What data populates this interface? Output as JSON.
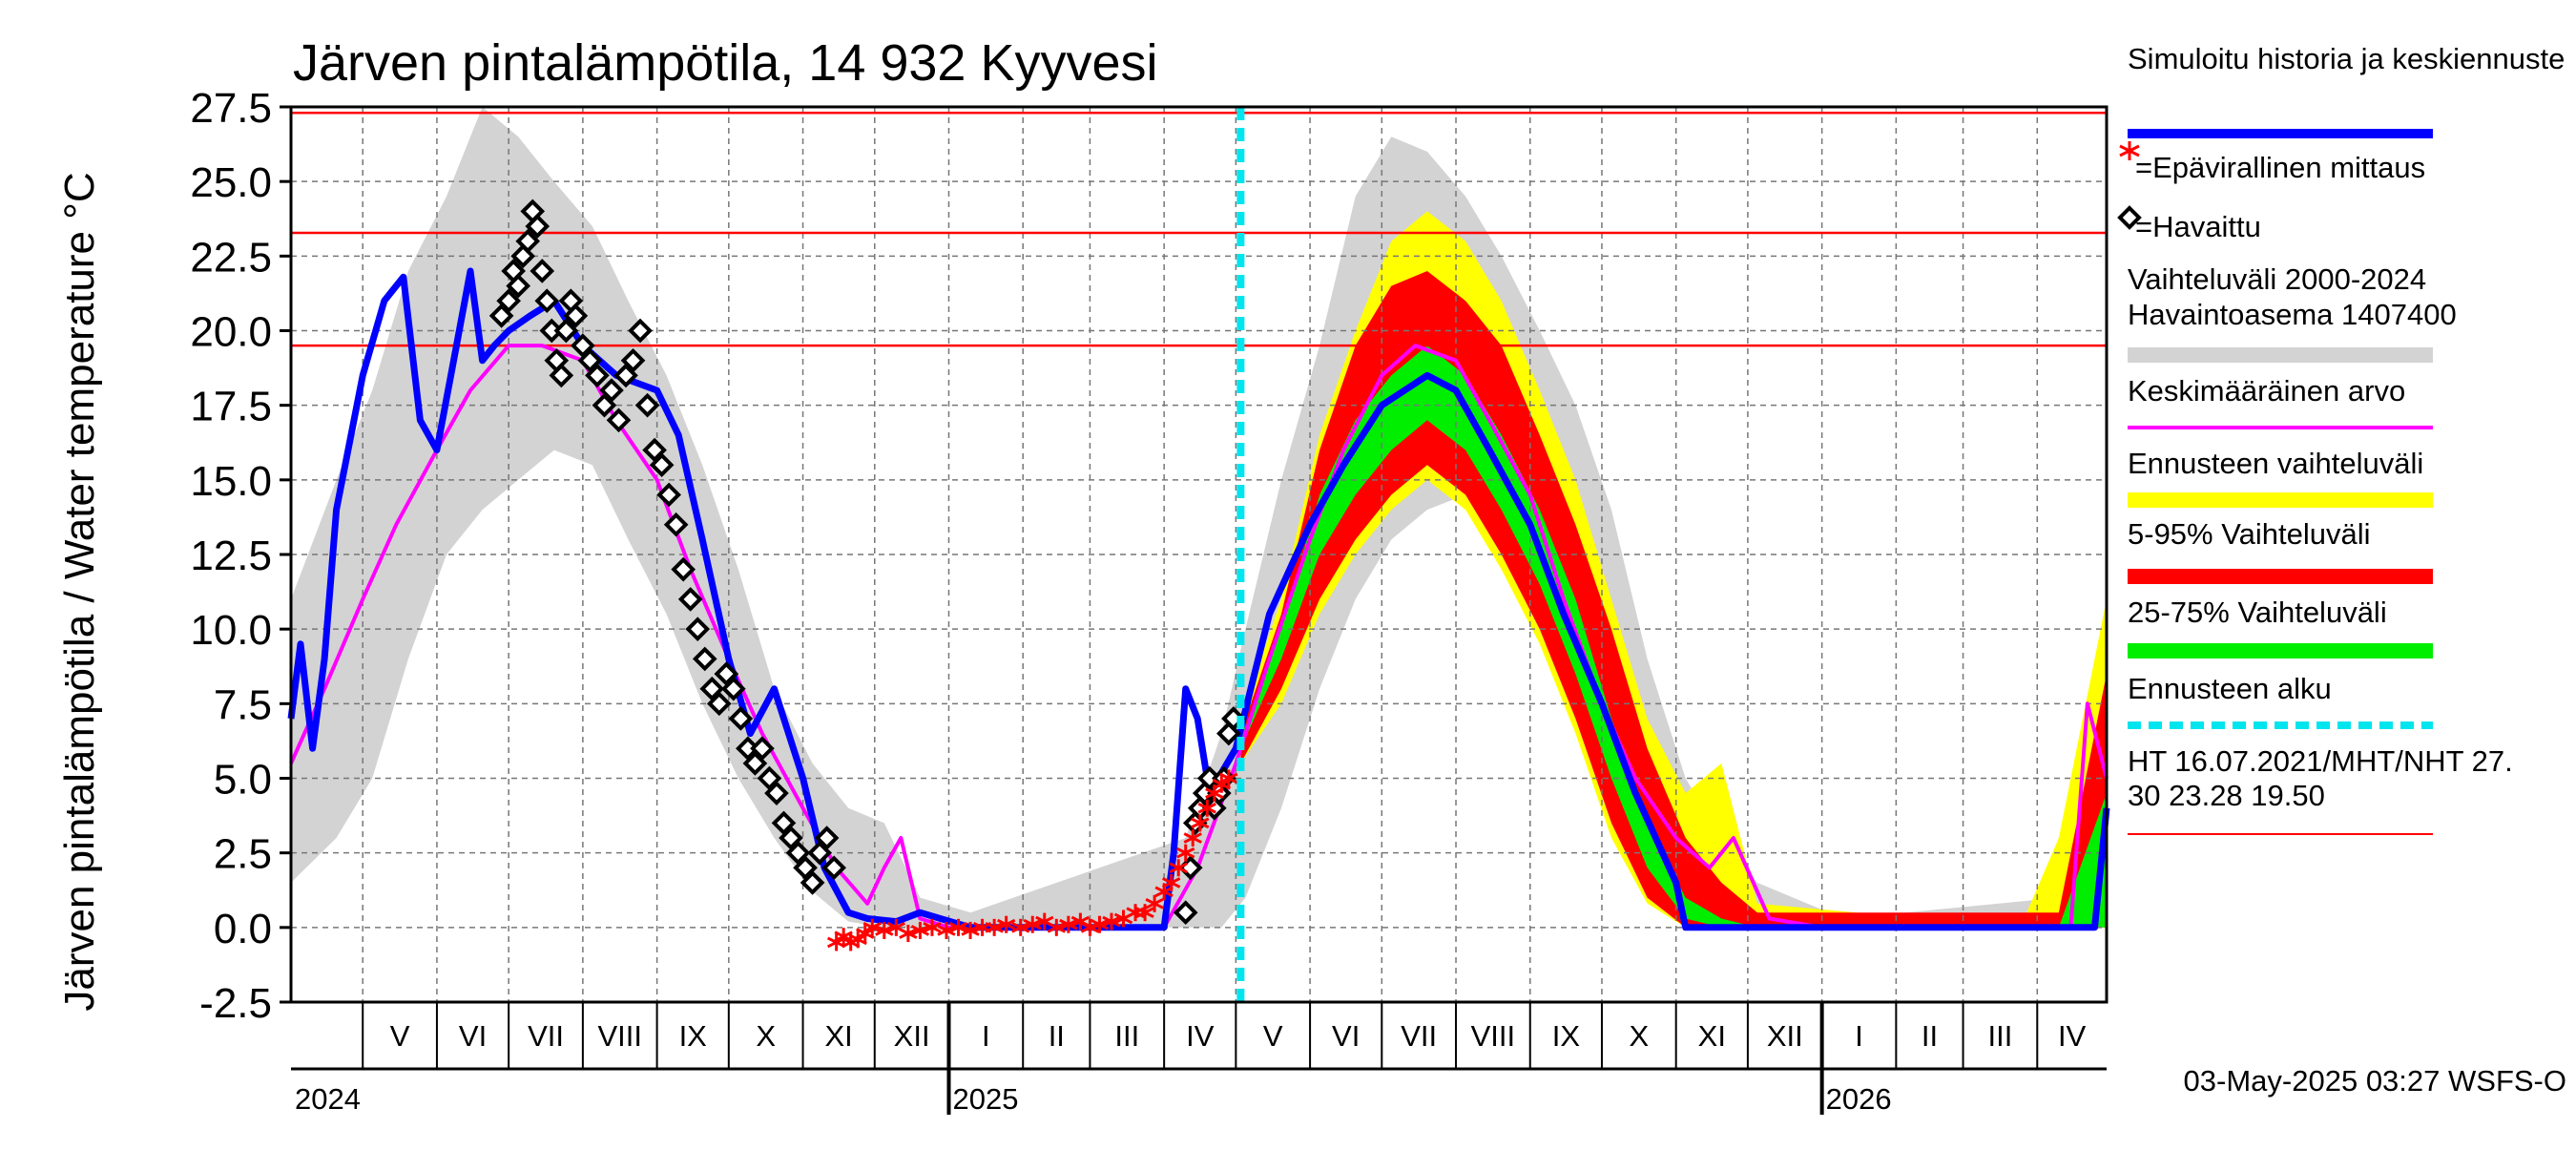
{
  "chart_data": {
    "type": "line",
    "title": "Järven pintalämpötila, 14 932 Kyyvesi",
    "ylabel": "Järven pintalämpötila / Water temperature °C",
    "xlabel": "",
    "ylim": [
      -2.5,
      27.5
    ],
    "yticks": [
      "27.5",
      "25.0",
      "22.5",
      "20.0",
      "17.5",
      "15.0",
      "12.5",
      "10.0",
      "7.5",
      "5.0",
      "2.5",
      "0.0",
      "-2.5"
    ],
    "x_range": [
      "2024-04-01",
      "2026-04-30"
    ],
    "grid": true,
    "months": [
      {
        "label": "V",
        "start": "2024-05-01"
      },
      {
        "label": "VI",
        "start": "2024-06-01"
      },
      {
        "label": "VII",
        "start": "2024-07-01"
      },
      {
        "label": "VIII",
        "start": "2024-08-01"
      },
      {
        "label": "IX",
        "start": "2024-09-01"
      },
      {
        "label": "X",
        "start": "2024-10-01"
      },
      {
        "label": "XI",
        "start": "2024-11-01"
      },
      {
        "label": "XII",
        "start": "2024-12-01"
      },
      {
        "label": "I",
        "start": "2025-01-01"
      },
      {
        "label": "II",
        "start": "2025-02-01"
      },
      {
        "label": "III",
        "start": "2025-03-01"
      },
      {
        "label": "IV",
        "start": "2025-04-01"
      },
      {
        "label": "V",
        "start": "2025-05-01"
      },
      {
        "label": "VI",
        "start": "2025-06-01"
      },
      {
        "label": "VII",
        "start": "2025-07-01"
      },
      {
        "label": "VIII",
        "start": "2025-08-01"
      },
      {
        "label": "IX",
        "start": "2025-09-01"
      },
      {
        "label": "X",
        "start": "2025-10-01"
      },
      {
        "label": "XI",
        "start": "2025-11-01"
      },
      {
        "label": "XII",
        "start": "2025-12-01"
      },
      {
        "label": "I",
        "start": "2026-01-01"
      },
      {
        "label": "II",
        "start": "2026-02-01"
      },
      {
        "label": "III",
        "start": "2026-03-01"
      },
      {
        "label": "IV",
        "start": "2026-04-01"
      }
    ],
    "years": [
      {
        "label": "2024",
        "date": "2024-04-01"
      },
      {
        "label": "2025",
        "date": "2025-01-01"
      },
      {
        "label": "2026",
        "date": "2026-01-01"
      }
    ],
    "reference_lines": [
      {
        "label": "HT 16.07.2021",
        "value": 27.3
      },
      {
        "label": "MHT",
        "value": 23.28
      },
      {
        "label": "NHT",
        "value": 19.5
      }
    ],
    "forecast_start": "2025-05-03",
    "legend": {
      "placement": "right",
      "items": [
        {
          "label": "Simuloitu historia ja keskiennuste",
          "color": "#0000ff",
          "kind": "line"
        },
        {
          "label": "=Epävirallinen mittaus",
          "color": "#ff0000",
          "kind": "star"
        },
        {
          "label": "=Havaittu",
          "color": "#000000",
          "kind": "diamond"
        },
        {
          "label": "Vaihteluväli 2000-2024\n Havaintoasema 1407400",
          "color": "#d3d3d3",
          "kind": "band"
        },
        {
          "label": "Keskimääräinen arvo",
          "color": "#ff00ff",
          "kind": "line"
        },
        {
          "label": "Ennusteen vaihteluväli",
          "color": "#ffff00",
          "kind": "band"
        },
        {
          "label": "5-95% Vaihteluväli",
          "color": "#ff0000",
          "kind": "band"
        },
        {
          "label": "25-75% Vaihteluväli",
          "color": "#00ee00",
          "kind": "band"
        },
        {
          "label": "Ennusteen alku",
          "color": "#00e5ee",
          "kind": "dashed"
        },
        {
          "label": "HT 16.07.2021/MHT/NHT 27.\n30 23.28 19.50",
          "color": "#ff0000",
          "kind": "line"
        }
      ]
    },
    "footer": "03-May-2025 03:27 WSFS-O",
    "series": [
      {
        "name": "Vaihteluväli 2000-2024",
        "kind": "band",
        "color": "#d3d3d3",
        "x": [
          "2024-04-01",
          "2024-04-20",
          "2024-05-05",
          "2024-05-20",
          "2024-06-05",
          "2024-06-20",
          "2024-07-05",
          "2024-07-20",
          "2024-08-05",
          "2024-08-20",
          "2024-09-05",
          "2024-09-20",
          "2024-10-05",
          "2024-10-20",
          "2024-11-05",
          "2024-11-20",
          "2024-12-05",
          "2024-12-20",
          "2025-01-10",
          "2025-04-10",
          "2025-04-25",
          "2025-05-05",
          "2025-05-20",
          "2025-06-05",
          "2025-06-20",
          "2025-07-05",
          "2025-07-20",
          "2025-08-05",
          "2025-08-20",
          "2025-09-05",
          "2025-09-20",
          "2025-10-05",
          "2025-10-20",
          "2025-11-05",
          "2025-11-20",
          "2025-12-05",
          "2025-12-20",
          "2026-01-10",
          "2026-04-10",
          "2026-04-30"
        ],
        "low": [
          1.5,
          3.0,
          5.0,
          9.0,
          12.5,
          14.0,
          15.0,
          16.0,
          15.5,
          13.0,
          10.5,
          7.5,
          5.0,
          3.0,
          1.2,
          0.2,
          0,
          0,
          0,
          0,
          0,
          1.0,
          4.0,
          8.0,
          11.0,
          13.0,
          14.0,
          14.5,
          12.5,
          10.0,
          7.0,
          3.5,
          1.0,
          0,
          0,
          0,
          0,
          0,
          0,
          0
        ],
        "high": [
          11.0,
          15.0,
          18.0,
          22.0,
          24.5,
          27.5,
          26.5,
          25.0,
          23.5,
          21.0,
          18.5,
          15.5,
          12.0,
          8.0,
          5.5,
          4.0,
          3.5,
          1.0,
          0.5,
          3.0,
          6.5,
          10.0,
          15.0,
          19.5,
          24.5,
          26.5,
          26.0,
          24.5,
          22.5,
          20.0,
          17.5,
          14.0,
          9.0,
          5.0,
          3.0,
          1.5,
          1.0,
          0.3,
          1.0,
          9.0
        ]
      },
      {
        "name": "Ennusteen vaihteluväli",
        "kind": "band",
        "color": "#ffff00",
        "x": [
          "2025-05-03",
          "2025-05-20",
          "2025-06-05",
          "2025-06-20",
          "2025-07-05",
          "2025-07-20",
          "2025-08-05",
          "2025-08-20",
          "2025-09-05",
          "2025-09-20",
          "2025-10-05",
          "2025-10-20",
          "2025-11-05",
          "2025-11-20",
          "2025-12-05",
          "2026-03-25",
          "2026-04-10",
          "2026-04-30"
        ],
        "low": [
          5.5,
          7.5,
          10.5,
          12.5,
          14.0,
          15.0,
          14.0,
          12.0,
          9.5,
          6.5,
          3.0,
          0.8,
          0,
          0,
          0,
          0,
          0,
          0
        ],
        "high": [
          7.0,
          11.0,
          16.5,
          20.0,
          23.0,
          24.0,
          23.0,
          21.0,
          18.0,
          15.0,
          11.0,
          7.0,
          4.5,
          5.5,
          0.8,
          0,
          3.0,
          11.0
        ]
      },
      {
        "name": "5-95% Vaihteluväli",
        "kind": "band",
        "color": "#ff0000",
        "x": [
          "2025-05-03",
          "2025-05-20",
          "2025-06-05",
          "2025-06-20",
          "2025-07-05",
          "2025-07-20",
          "2025-08-05",
          "2025-08-20",
          "2025-09-05",
          "2025-09-20",
          "2025-10-05",
          "2025-10-20",
          "2025-11-05",
          "2025-11-20",
          "2025-12-05",
          "2026-04-10",
          "2026-04-30"
        ],
        "low": [
          5.5,
          8.0,
          11.0,
          13.0,
          14.5,
          15.5,
          14.5,
          12.5,
          10.0,
          7.0,
          3.5,
          1.0,
          0,
          0,
          0,
          0,
          0
        ],
        "high": [
          6.5,
          10.5,
          16.0,
          19.5,
          21.5,
          22.0,
          21.0,
          19.5,
          16.5,
          13.5,
          10.0,
          6.0,
          3.0,
          1.5,
          0.5,
          0.5,
          8.5
        ]
      },
      {
        "name": "25-75% Vaihteluväli",
        "kind": "band",
        "color": "#00ee00",
        "x": [
          "2025-05-03",
          "2025-05-20",
          "2025-06-05",
          "2025-06-20",
          "2025-07-05",
          "2025-07-20",
          "2025-08-05",
          "2025-08-20",
          "2025-09-05",
          "2025-09-20",
          "2025-10-05",
          "2025-10-20",
          "2025-11-05",
          "2025-11-20",
          "2025-12-05",
          "2026-04-10",
          "2026-04-30"
        ],
        "low": [
          6.0,
          9.0,
          12.5,
          14.5,
          16.0,
          17.0,
          16.0,
          14.0,
          11.5,
          8.5,
          5.0,
          2.0,
          0.3,
          0,
          0,
          0,
          0
        ],
        "high": [
          6.3,
          10.0,
          14.5,
          17.0,
          18.5,
          19.5,
          18.5,
          16.5,
          14.0,
          11.0,
          7.0,
          3.5,
          1.0,
          0.3,
          0,
          0,
          4.5
        ]
      },
      {
        "name": "Keskimääräinen arvo",
        "kind": "line",
        "color": "#ff00ff",
        "x": [
          "2024-04-01",
          "2024-04-15",
          "2024-05-01",
          "2024-05-15",
          "2024-06-01",
          "2024-06-15",
          "2024-07-01",
          "2024-07-15",
          "2024-08-01",
          "2024-08-15",
          "2024-09-01",
          "2024-09-15",
          "2024-10-01",
          "2024-10-15",
          "2024-11-01",
          "2024-11-15",
          "2024-11-28",
          "2024-12-05",
          "2024-12-12",
          "2024-12-20",
          "2025-01-01",
          "2025-04-01",
          "2025-04-15",
          "2025-05-01",
          "2025-05-15",
          "2025-06-01",
          "2025-06-15",
          "2025-07-01",
          "2025-07-15",
          "2025-08-01",
          "2025-08-15",
          "2025-09-01",
          "2025-09-15",
          "2025-10-01",
          "2025-10-15",
          "2025-11-01",
          "2025-11-15",
          "2025-11-25",
          "2025-12-10",
          "2026-01-01",
          "2026-04-15",
          "2026-04-22",
          "2026-04-30"
        ],
        "y": [
          5.5,
          8.0,
          11.0,
          13.5,
          16.0,
          18.0,
          19.5,
          19.5,
          19.0,
          17.0,
          15.0,
          12.0,
          9.0,
          6.5,
          4.0,
          2.0,
          0.8,
          2.0,
          3.0,
          0.3,
          0,
          0,
          2.0,
          5.5,
          9.0,
          13.0,
          16.0,
          18.5,
          19.5,
          19.0,
          17.0,
          14.5,
          11.0,
          7.5,
          5.0,
          3.0,
          2.0,
          3.0,
          0.3,
          0,
          0,
          7.5,
          5.0
        ]
      },
      {
        "name": "Simuloitu historia ja keskiennuste",
        "kind": "line",
        "color": "#0000ff",
        "x": [
          "2024-04-01",
          "2024-04-05",
          "2024-04-10",
          "2024-04-15",
          "2024-04-20",
          "2024-05-01",
          "2024-05-10",
          "2024-05-18",
          "2024-05-25",
          "2024-06-01",
          "2024-06-08",
          "2024-06-15",
          "2024-06-20",
          "2024-06-25",
          "2024-07-01",
          "2024-07-10",
          "2024-07-20",
          "2024-08-01",
          "2024-08-15",
          "2024-09-01",
          "2024-09-10",
          "2024-09-20",
          "2024-10-01",
          "2024-10-10",
          "2024-10-20",
          "2024-11-01",
          "2024-11-10",
          "2024-11-20",
          "2024-11-28",
          "2024-12-10",
          "2024-12-20",
          "2025-01-10",
          "2025-03-20",
          "2025-04-01",
          "2025-04-05",
          "2025-04-10",
          "2025-04-15",
          "2025-04-20",
          "2025-05-01",
          "2025-05-15",
          "2025-06-01",
          "2025-06-15",
          "2025-07-01",
          "2025-07-20",
          "2025-08-01",
          "2025-08-15",
          "2025-09-01",
          "2025-09-15",
          "2025-10-01",
          "2025-10-15",
          "2025-11-01",
          "2025-11-05",
          "2026-04-25",
          "2026-04-30"
        ],
        "y": [
          7.0,
          9.5,
          6.0,
          9.0,
          14.0,
          18.5,
          21.0,
          21.8,
          17.0,
          16.0,
          19.0,
          22.0,
          19.0,
          19.5,
          20.0,
          20.5,
          21.0,
          19.5,
          18.5,
          18.0,
          16.5,
          13.0,
          9.0,
          6.5,
          8.0,
          5.0,
          2.0,
          0.5,
          0.3,
          0.2,
          0.5,
          0,
          0,
          0,
          2.5,
          8.0,
          7.0,
          4.5,
          6.0,
          10.5,
          13.5,
          15.5,
          17.5,
          18.5,
          18.0,
          16.0,
          13.5,
          10.5,
          7.5,
          4.5,
          1.5,
          0,
          0,
          4.0
        ]
      },
      {
        "name": "Havaittu",
        "kind": "scatter",
        "marker": "diamond",
        "color": "#000000",
        "x": [
          "2024-06-28",
          "2024-07-01",
          "2024-07-03",
          "2024-07-05",
          "2024-07-07",
          "2024-07-09",
          "2024-07-11",
          "2024-07-13",
          "2024-07-15",
          "2024-07-17",
          "2024-07-19",
          "2024-07-21",
          "2024-07-23",
          "2024-07-25",
          "2024-07-27",
          "2024-07-29",
          "2024-08-01",
          "2024-08-04",
          "2024-08-07",
          "2024-08-10",
          "2024-08-13",
          "2024-08-16",
          "2024-08-19",
          "2024-08-22",
          "2024-08-25",
          "2024-08-28",
          "2024-08-31",
          "2024-09-03",
          "2024-09-06",
          "2024-09-09",
          "2024-09-12",
          "2024-09-15",
          "2024-09-18",
          "2024-09-21",
          "2024-09-24",
          "2024-09-27",
          "2024-09-30",
          "2024-10-03",
          "2024-10-06",
          "2024-10-09",
          "2024-10-12",
          "2024-10-15",
          "2024-10-18",
          "2024-10-21",
          "2024-10-24",
          "2024-10-27",
          "2024-10-30",
          "2024-11-02",
          "2024-11-05",
          "2024-11-08",
          "2024-11-11",
          "2024-11-14",
          "2025-04-10",
          "2025-04-12",
          "2025-04-14",
          "2025-04-16",
          "2025-04-18",
          "2025-04-20",
          "2025-04-22",
          "2025-04-24",
          "2025-04-26",
          "2025-04-28",
          "2025-04-30"
        ],
        "y": [
          20.5,
          21.0,
          22.0,
          21.5,
          22.5,
          23.0,
          24.0,
          23.5,
          22.0,
          21.0,
          20.0,
          19.0,
          18.5,
          20.0,
          21.0,
          20.5,
          19.5,
          19.0,
          18.5,
          17.5,
          18.0,
          17.0,
          18.5,
          19.0,
          20.0,
          17.5,
          16.0,
          15.5,
          14.5,
          13.5,
          12.0,
          11.0,
          10.0,
          9.0,
          8.0,
          7.5,
          8.5,
          8.0,
          7.0,
          6.0,
          5.5,
          6.0,
          5.0,
          4.5,
          3.5,
          3.0,
          2.5,
          2.0,
          1.5,
          2.5,
          3.0,
          2.0,
          0.5,
          2.0,
          3.5,
          4.0,
          4.5,
          5.0,
          4.0,
          4.5,
          5.0,
          6.5,
          7.0
        ]
      },
      {
        "name": "Epävirallinen mittaus",
        "kind": "scatter",
        "marker": "star",
        "color": "#ff0000",
        "x": [
          "2024-11-15",
          "2024-11-18",
          "2024-11-21",
          "2024-11-24",
          "2024-11-27",
          "2024-11-30",
          "2024-12-05",
          "2024-12-10",
          "2024-12-15",
          "2024-12-20",
          "2024-12-25",
          "2024-12-31",
          "2025-01-05",
          "2025-01-10",
          "2025-01-15",
          "2025-01-20",
          "2025-01-25",
          "2025-01-31",
          "2025-02-05",
          "2025-02-10",
          "2025-02-15",
          "2025-02-20",
          "2025-02-25",
          "2025-03-01",
          "2025-03-05",
          "2025-03-10",
          "2025-03-15",
          "2025-03-20",
          "2025-03-24",
          "2025-03-28",
          "2025-04-01",
          "2025-04-04",
          "2025-04-07",
          "2025-04-10",
          "2025-04-13",
          "2025-04-16",
          "2025-04-19",
          "2025-04-22",
          "2025-04-25",
          "2025-04-28"
        ],
        "y": [
          -0.5,
          -0.3,
          -0.5,
          -0.4,
          -0.2,
          0.0,
          -0.1,
          0.0,
          -0.2,
          -0.1,
          0.0,
          -0.1,
          0.0,
          -0.1,
          0.0,
          0.0,
          0.1,
          0.0,
          0.1,
          0.2,
          0.0,
          0.1,
          0.2,
          0.0,
          0.1,
          0.2,
          0.3,
          0.5,
          0.5,
          0.8,
          1.2,
          1.5,
          2.0,
          2.5,
          3.0,
          3.5,
          4.0,
          4.5,
          4.8,
          5.0
        ]
      },
      {
        "name": "HT 16.07.2021/MHT/NHT 27.30 23.28 19.50",
        "kind": "hlines",
        "color": "#ff0000",
        "values": [
          27.3,
          23.28,
          19.5
        ]
      }
    ]
  }
}
